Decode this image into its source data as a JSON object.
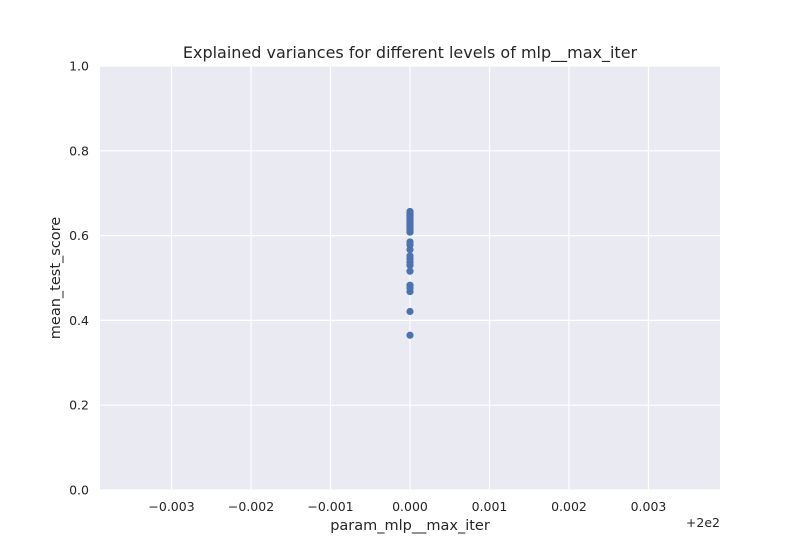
{
  "chart_data": {
    "type": "scatter",
    "title": "Explained variances for different levels of mlp__max_iter",
    "xlabel": "param_mlp__max_iter",
    "ylabel": "mean_test_score",
    "x_offset_label": "+2e2",
    "xlim": [
      -0.0039,
      0.0039
    ],
    "ylim": [
      0,
      1
    ],
    "x_ticks": [
      -0.003,
      -0.002,
      -0.001,
      0.0,
      0.001,
      0.002,
      0.003
    ],
    "x_tick_labels": [
      "−0.003",
      "−0.002",
      "−0.001",
      "0.000",
      "0.001",
      "0.002",
      "0.003"
    ],
    "y_ticks": [
      0.0,
      0.2,
      0.4,
      0.6,
      0.8,
      1.0
    ],
    "y_tick_labels": [
      "0.0",
      "0.2",
      "0.4",
      "0.6",
      "0.8",
      "1.0"
    ],
    "grid": true,
    "colors": {
      "background": "#eaeaf2",
      "grid": "#ffffff",
      "marker": "#4c72b0"
    },
    "points": [
      {
        "x": 200,
        "y": 0.657
      },
      {
        "x": 200,
        "y": 0.653
      },
      {
        "x": 200,
        "y": 0.65
      },
      {
        "x": 200,
        "y": 0.647
      },
      {
        "x": 200,
        "y": 0.644
      },
      {
        "x": 200,
        "y": 0.641
      },
      {
        "x": 200,
        "y": 0.638
      },
      {
        "x": 200,
        "y": 0.635
      },
      {
        "x": 200,
        "y": 0.632
      },
      {
        "x": 200,
        "y": 0.629
      },
      {
        "x": 200,
        "y": 0.626
      },
      {
        "x": 200,
        "y": 0.623
      },
      {
        "x": 200,
        "y": 0.62
      },
      {
        "x": 200,
        "y": 0.616
      },
      {
        "x": 200,
        "y": 0.612
      },
      {
        "x": 200,
        "y": 0.608
      },
      {
        "x": 200,
        "y": 0.585
      },
      {
        "x": 200,
        "y": 0.578
      },
      {
        "x": 200,
        "y": 0.567
      },
      {
        "x": 200,
        "y": 0.552
      },
      {
        "x": 200,
        "y": 0.545
      },
      {
        "x": 200,
        "y": 0.537
      },
      {
        "x": 200,
        "y": 0.53
      },
      {
        "x": 200,
        "y": 0.516
      },
      {
        "x": 200,
        "y": 0.483
      },
      {
        "x": 200,
        "y": 0.476
      },
      {
        "x": 200,
        "y": 0.468
      },
      {
        "x": 200,
        "y": 0.421
      },
      {
        "x": 200,
        "y": 0.365
      }
    ]
  }
}
